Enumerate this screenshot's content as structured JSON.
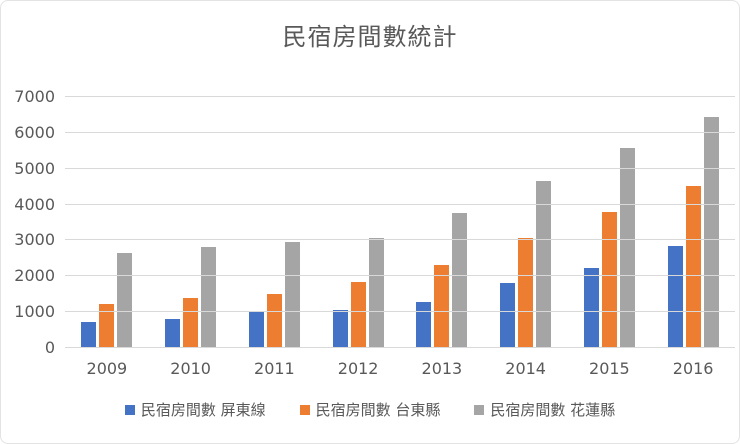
{
  "chart_data": {
    "type": "bar",
    "title": "民宿房間數統計",
    "categories": [
      "2009",
      "2010",
      "2011",
      "2012",
      "2013",
      "2014",
      "2015",
      "2016"
    ],
    "series": [
      {
        "name": "民宿房間數 屏東線",
        "color": "#4472C4",
        "values": [
          730,
          800,
          1000,
          1060,
          1270,
          1800,
          2230,
          2840
        ]
      },
      {
        "name": "民宿房間數 台東縣",
        "color": "#ED7D31",
        "values": [
          1230,
          1390,
          1510,
          1850,
          2310,
          3060,
          3800,
          4510
        ]
      },
      {
        "name": "民宿房間數 花蓮縣",
        "color": "#A5A5A5",
        "values": [
          2660,
          2810,
          2970,
          3080,
          3760,
          4670,
          5580,
          6450
        ]
      }
    ],
    "xlabel": "",
    "ylabel": "",
    "ylim": [
      0,
      7000
    ],
    "yticks": [
      "0",
      "1000",
      "2000",
      "3000",
      "4000",
      "5000",
      "6000",
      "7000"
    ],
    "grid": true,
    "legend_position": "bottom"
  },
  "colors": {
    "text": "#595959",
    "gridline": "#D9D9D9",
    "background": "#FFFFFF",
    "border": "#E3E3E3"
  }
}
